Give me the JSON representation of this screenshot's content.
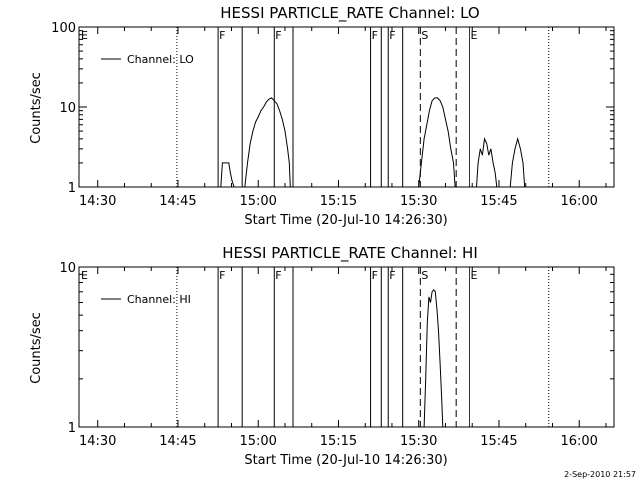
{
  "footer": {
    "date_stamp": "2-Sep-2010 21:57"
  },
  "chart_data": [
    {
      "type": "line",
      "title": "HESSI PARTICLE_RATE Channel: LO",
      "xlabel": "Start Time (20-Jul-10 14:26:30)",
      "ylabel": "Counts/sec",
      "x_units": "minutes after 14:26:30",
      "xlim": [
        0,
        100
      ],
      "yscale": "log",
      "ylim": [
        1,
        100
      ],
      "y_ticks": [
        1,
        10,
        100
      ],
      "y_tick_labels": [
        "1",
        "10",
        "100"
      ],
      "x_ticks": [
        3.5,
        18.5,
        33.5,
        48.5,
        63.5,
        78.5,
        93.5
      ],
      "x_tick_labels": [
        "14:30",
        "14:45",
        "15:00",
        "15:15",
        "15:30",
        "15:45",
        "16:00"
      ],
      "legend": {
        "entries": [
          "Channel: LO"
        ],
        "placement": "top-left"
      },
      "grid": false,
      "markers": [
        {
          "label": "E",
          "x": 0,
          "style": "none"
        },
        {
          "label": "",
          "x": 18.3,
          "style": "dotted"
        },
        {
          "label": "F",
          "x": 26.0,
          "style": "solid"
        },
        {
          "label": "",
          "x": 30.5,
          "style": "solid"
        },
        {
          "label": "F",
          "x": 36.5,
          "style": "solid"
        },
        {
          "label": "",
          "x": 40.0,
          "style": "solid"
        },
        {
          "label": "F",
          "x": 54.5,
          "style": "solid"
        },
        {
          "label": "",
          "x": 56.5,
          "style": "solid"
        },
        {
          "label": "F",
          "x": 57.8,
          "style": "solid"
        },
        {
          "label": "",
          "x": 60.5,
          "style": "solid"
        },
        {
          "label": "S",
          "x": 63.8,
          "style": "dashed"
        },
        {
          "label": "",
          "x": 70.5,
          "style": "dashed"
        },
        {
          "label": "E",
          "x": 73.0,
          "style": "solid-thin"
        },
        {
          "label": "",
          "x": 87.8,
          "style": "dotted"
        }
      ],
      "series": [
        {
          "name": "Channel: LO",
          "x": [
            26.5,
            26.8,
            27.5,
            28.0,
            28.3,
            28.6,
            29.0,
            31.0,
            31.5,
            32.0,
            32.5,
            33.0,
            33.5,
            34.0,
            34.5,
            35.0,
            35.5,
            36.0,
            36.5,
            37.0,
            37.5,
            38.0,
            38.5,
            39.0,
            39.3,
            39.5,
            63.5,
            64.0,
            64.5,
            65.0,
            65.5,
            66.0,
            66.5,
            67.0,
            67.5,
            68.0,
            68.5,
            69.0,
            69.5,
            70.0,
            70.3,
            74.3,
            74.6,
            75.0,
            75.4,
            75.8,
            76.2,
            76.6,
            77.0,
            77.4,
            77.8,
            78.1,
            80.6,
            81.0,
            81.5,
            82.0,
            82.5,
            83.0,
            83.3
          ],
          "y": [
            1,
            2,
            2,
            2,
            1.5,
            1.2,
            1,
            1,
            2,
            3.5,
            5,
            6.5,
            7.5,
            9,
            10,
            11.5,
            12.5,
            13,
            12,
            11,
            9,
            7,
            5,
            3,
            2,
            1,
            1,
            2,
            4,
            6,
            9,
            12,
            13,
            13,
            12,
            10,
            7,
            5,
            3,
            2,
            1,
            1,
            2,
            3,
            2.5,
            4,
            3.5,
            2.5,
            3,
            2,
            1.5,
            1,
            1,
            2,
            3,
            4,
            3,
            2,
            1
          ]
        }
      ]
    },
    {
      "type": "line",
      "title": "HESSI PARTICLE_RATE Channel: HI",
      "xlabel": "Start Time (20-Jul-10 14:26:30)",
      "ylabel": "Counts/sec",
      "x_units": "minutes after 14:26:30",
      "xlim": [
        0,
        100
      ],
      "yscale": "log",
      "ylim": [
        1,
        10
      ],
      "y_ticks": [
        1,
        10
      ],
      "y_tick_labels": [
        "1",
        "10"
      ],
      "x_ticks": [
        3.5,
        18.5,
        33.5,
        48.5,
        63.5,
        78.5,
        93.5
      ],
      "x_tick_labels": [
        "14:30",
        "14:45",
        "15:00",
        "15:15",
        "15:30",
        "15:45",
        "16:00"
      ],
      "legend": {
        "entries": [
          "Channel: HI"
        ],
        "placement": "top-left"
      },
      "grid": false,
      "markers": [
        {
          "label": "E",
          "x": 0,
          "style": "none"
        },
        {
          "label": "",
          "x": 18.3,
          "style": "dotted"
        },
        {
          "label": "F",
          "x": 26.0,
          "style": "solid"
        },
        {
          "label": "",
          "x": 30.5,
          "style": "solid"
        },
        {
          "label": "F",
          "x": 36.5,
          "style": "solid"
        },
        {
          "label": "",
          "x": 40.0,
          "style": "solid"
        },
        {
          "label": "F",
          "x": 54.5,
          "style": "solid"
        },
        {
          "label": "",
          "x": 56.5,
          "style": "solid"
        },
        {
          "label": "F",
          "x": 57.8,
          "style": "solid"
        },
        {
          "label": "",
          "x": 60.5,
          "style": "solid"
        },
        {
          "label": "S",
          "x": 63.8,
          "style": "dashed"
        },
        {
          "label": "",
          "x": 70.5,
          "style": "dashed"
        },
        {
          "label": "E",
          "x": 73.0,
          "style": "solid-thin"
        },
        {
          "label": "",
          "x": 87.8,
          "style": "dotted"
        }
      ],
      "series": [
        {
          "name": "Channel: HI",
          "x": [
            64.5,
            64.8,
            65.1,
            65.4,
            65.7,
            66.0,
            66.3,
            66.6,
            66.9,
            67.2,
            67.5,
            67.8,
            68.0
          ],
          "y": [
            1,
            2,
            4.5,
            6.5,
            6,
            7,
            7.2,
            7,
            5.5,
            4,
            2.5,
            1.5,
            1
          ]
        }
      ]
    }
  ]
}
